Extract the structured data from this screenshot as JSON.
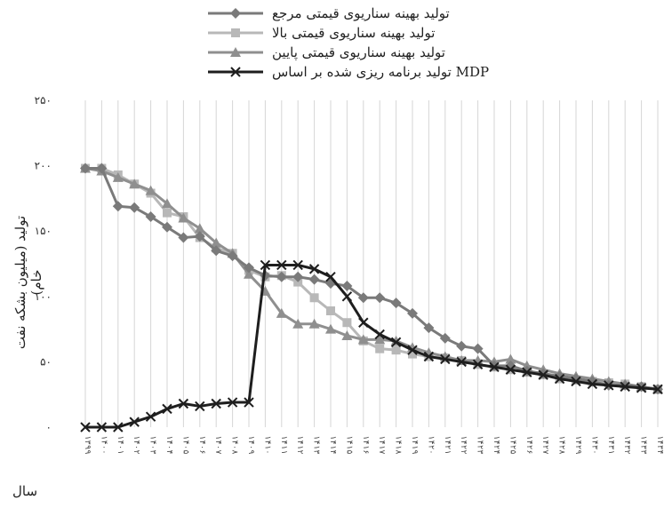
{
  "chart_data": {
    "type": "line",
    "title": "",
    "ylabel": "تولید (میلیون بشکه نفت خام)",
    "xlabel": "سال",
    "ylim": [
      0,
      250
    ],
    "yticks": [
      0,
      50,
      100,
      150,
      200,
      250
    ],
    "ytick_labels": [
      "۰",
      "۵۰",
      "۱۰۰",
      "۱۵۰",
      "۲۰۰",
      "۲۵۰"
    ],
    "grid": "vertical",
    "legend_position": "top",
    "x": [
      1399,
      1400,
      1401,
      1402,
      1403,
      1404,
      1405,
      1406,
      1407,
      1408,
      1409,
      1410,
      1411,
      1412,
      1413,
      1414,
      1415,
      1416,
      1417,
      1418,
      1419,
      1420,
      1421,
      1422,
      1423,
      1424,
      1425,
      1426,
      1427,
      1428,
      1429,
      1430,
      1431,
      1432,
      1433,
      1434
    ],
    "x_tick_labels": [
      "۱۳۹۹",
      "۱۴۰۰",
      "۱۴۰۱",
      "۱۴۰۲",
      "۱۴۰۳",
      "۱۴۰۴",
      "۱۴۰۵",
      "۱۴۰۶",
      "۱۴۰۷",
      "۱۴۰۸",
      "۱۴۰۹",
      "۱۴۱۰",
      "۱۴۱۱",
      "۱۴۱۲",
      "۱۴۱۳",
      "۱۴۱۴",
      "۱۴۱۵",
      "۱۴۱۶",
      "۱۴۱۷",
      "۱۴۱۸",
      "۱۴۱۹",
      "۱۴۲۰",
      "۱۴۲۱",
      "۱۴۲۲",
      "۱۴۲۳",
      "۱۴۲۴",
      "۱۴۲۵",
      "۱۴۲۶",
      "۱۴۲۷",
      "۱۴۲۸",
      "۱۴۲۹",
      "۱۴۳۰",
      "۱۴۳۱",
      "۱۴۳۲",
      "۱۴۳۳",
      "۱۴۳۴"
    ],
    "series": [
      {
        "name": "تولید بهینه سناریوی قیمتی مرجع",
        "color": "#7a7a7a",
        "marker": "diamond",
        "values": [
          198,
          198,
          169,
          168,
          161,
          153,
          145,
          146,
          135,
          131,
          122,
          116,
          115,
          115,
          113,
          110,
          108,
          99,
          99,
          95,
          87,
          76,
          68,
          62,
          60,
          47,
          47,
          43,
          41,
          39,
          37,
          35,
          32,
          32,
          31,
          29
        ]
      },
      {
        "name": "تولید بهینه سناریوی قیمتی بالا",
        "color": "#b8b8b8",
        "marker": "square",
        "values": [
          198,
          198,
          193,
          186,
          179,
          164,
          161,
          145,
          137,
          133,
          120,
          115,
          116,
          111,
          99,
          89,
          80,
          66,
          60,
          59,
          56,
          54,
          53,
          51,
          48,
          46,
          44,
          42,
          40,
          37,
          36,
          35,
          34,
          33,
          31,
          29
        ]
      },
      {
        "name": "تولید بهینه سناریوی قیمتی پایین",
        "color": "#8f8f8f",
        "marker": "triangle",
        "values": [
          198,
          196,
          191,
          186,
          181,
          171,
          160,
          152,
          141,
          133,
          117,
          104,
          87,
          79,
          79,
          75,
          70,
          67,
          67,
          66,
          61,
          57,
          54,
          51,
          51,
          50,
          52,
          47,
          44,
          41,
          39,
          37,
          35,
          33,
          31,
          29
        ]
      },
      {
        "name": "تولید برنامه ریزی شده بر اساس MDP",
        "color": "#1e1e1e",
        "marker": "x",
        "values": [
          0,
          0,
          0,
          4,
          8,
          14,
          18,
          16,
          18,
          19,
          19,
          124,
          124,
          124,
          121,
          115,
          100,
          80,
          71,
          65,
          59,
          54,
          52,
          50,
          48,
          46,
          44,
          42,
          40,
          37,
          35,
          33,
          32,
          31,
          30,
          29
        ]
      }
    ]
  }
}
